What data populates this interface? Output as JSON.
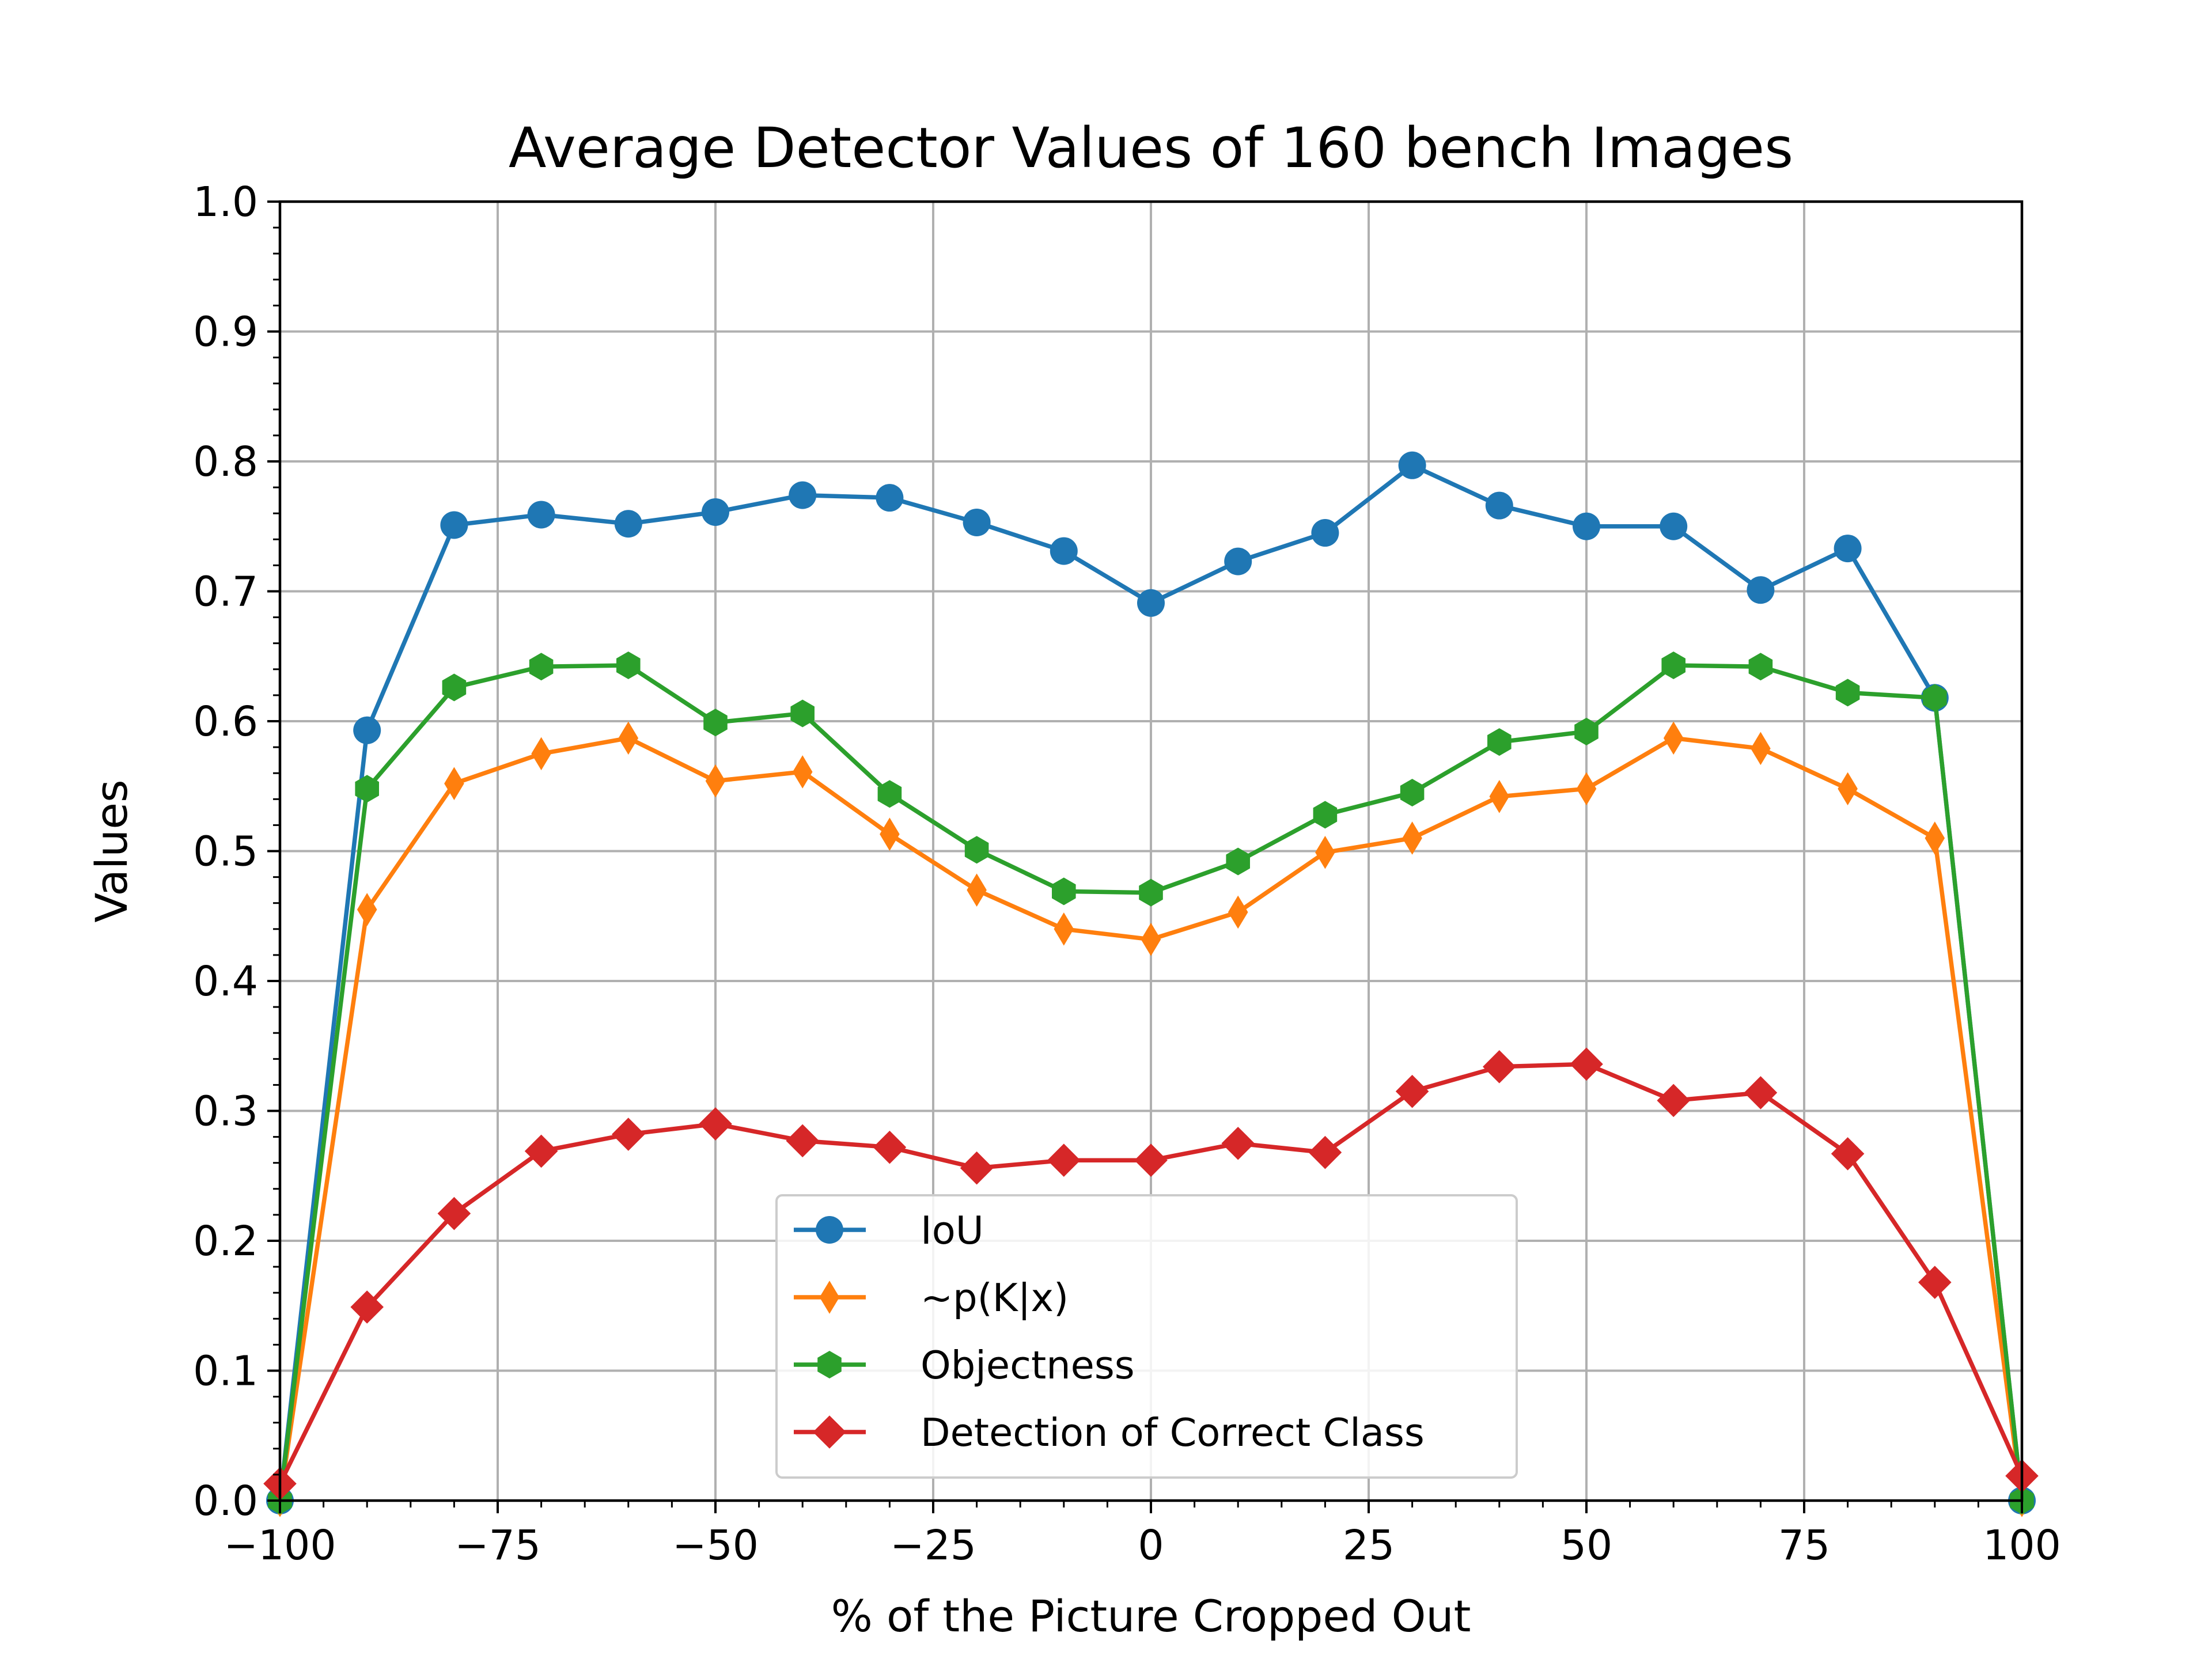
{
  "chart_data": {
    "type": "line",
    "title": "Average Detector Values of 160 bench Images",
    "xlabel": "% of the Picture Cropped Out",
    "ylabel": "Values",
    "xlim": [
      -100,
      100
    ],
    "ylim": [
      0.0,
      1.0
    ],
    "xticks": [
      -100,
      -75,
      -50,
      -25,
      0,
      25,
      50,
      75,
      100
    ],
    "xtick_labels": [
      "−100",
      "−75",
      "−50",
      "−25",
      "0",
      "25",
      "50",
      "75",
      "100"
    ],
    "yticks": [
      0.0,
      0.1,
      0.2,
      0.3,
      0.4,
      0.5,
      0.6,
      0.7,
      0.8,
      0.9,
      1.0
    ],
    "ytick_labels": [
      "0.0",
      "0.1",
      "0.2",
      "0.3",
      "0.4",
      "0.5",
      "0.6",
      "0.7",
      "0.8",
      "0.9",
      "1.0"
    ],
    "grid": true,
    "legend_position": "lower-center",
    "x": [
      -100,
      -90,
      -80,
      -70,
      -60,
      -50,
      -40,
      -30,
      -20,
      -10,
      0,
      10,
      20,
      30,
      40,
      50,
      60,
      70,
      80,
      90,
      100
    ],
    "series": [
      {
        "name": "IoU",
        "color": "#1f77b4",
        "marker": "circle",
        "values": [
          0.0,
          0.593,
          0.751,
          0.759,
          0.752,
          0.761,
          0.774,
          0.772,
          0.753,
          0.731,
          0.691,
          0.723,
          0.745,
          0.797,
          0.766,
          0.75,
          0.75,
          0.701,
          0.733,
          0.618,
          0.0
        ]
      },
      {
        "name": "~p(K|x)",
        "color": "#ff7f0e",
        "marker": "thin_diamond",
        "values": [
          0.0,
          0.455,
          0.552,
          0.575,
          0.587,
          0.554,
          0.561,
          0.513,
          0.47,
          0.44,
          0.432,
          0.453,
          0.499,
          0.51,
          0.542,
          0.548,
          0.587,
          0.579,
          0.548,
          0.51,
          0.0
        ]
      },
      {
        "name": "Objectness",
        "color": "#2ca02c",
        "marker": "hexagon",
        "values": [
          0.0,
          0.548,
          0.626,
          0.642,
          0.643,
          0.599,
          0.606,
          0.544,
          0.501,
          0.469,
          0.468,
          0.492,
          0.528,
          0.545,
          0.584,
          0.592,
          0.643,
          0.642,
          0.622,
          0.618,
          0.0
        ]
      },
      {
        "name": "Detection of Correct Class",
        "color": "#d62728",
        "marker": "diamond",
        "values": [
          0.013,
          0.149,
          0.221,
          0.269,
          0.282,
          0.29,
          0.277,
          0.272,
          0.256,
          0.262,
          0.262,
          0.275,
          0.268,
          0.315,
          0.334,
          0.336,
          0.308,
          0.314,
          0.267,
          0.168,
          0.019
        ]
      }
    ]
  }
}
